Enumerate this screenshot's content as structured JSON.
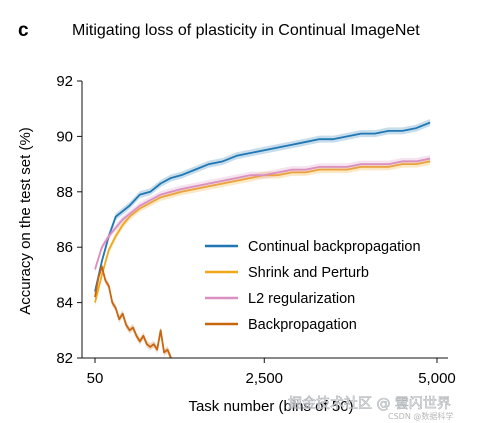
{
  "panel_letter": "c",
  "chart_data": {
    "type": "line",
    "title": "Mitigating loss of plasticity in Continual ImageNet",
    "xlabel": "Task number (bins of 50)",
    "ylabel": "Accuracy on the test set (%)",
    "xlim": [
      50,
      5000
    ],
    "ylim": [
      82,
      92
    ],
    "xticks": [
      50,
      2500,
      5000
    ],
    "xtick_labels": [
      "50",
      "2,500",
      "5,000"
    ],
    "yticks": [
      82,
      84,
      86,
      88,
      90,
      92
    ],
    "ytick_labels": [
      "82",
      "84",
      "86",
      "88",
      "90",
      "92"
    ],
    "grid": false,
    "legend_position": "lower-right",
    "series": [
      {
        "name": "Continual backpropagation",
        "color": "#1f77b4",
        "x": [
          50,
          150,
          250,
          350,
          450,
          550,
          700,
          850,
          1000,
          1150,
          1300,
          1500,
          1700,
          1900,
          2100,
          2300,
          2500,
          2700,
          2900,
          3100,
          3300,
          3500,
          3700,
          3900,
          4100,
          4300,
          4500,
          4700,
          4900
        ],
        "values": [
          84.4,
          85.5,
          86.4,
          87.1,
          87.3,
          87.5,
          87.9,
          88.0,
          88.3,
          88.5,
          88.6,
          88.8,
          89.0,
          89.1,
          89.3,
          89.4,
          89.5,
          89.6,
          89.7,
          89.8,
          89.9,
          89.9,
          90.0,
          90.1,
          90.1,
          90.2,
          90.2,
          90.3,
          90.5
        ]
      },
      {
        "name": "Shrink and Perturb",
        "color": "#f0a818",
        "x": [
          50,
          150,
          250,
          350,
          450,
          550,
          700,
          850,
          1000,
          1150,
          1300,
          1500,
          1700,
          1900,
          2100,
          2300,
          2500,
          2700,
          2900,
          3100,
          3300,
          3500,
          3700,
          3900,
          4100,
          4300,
          4500,
          4700,
          4900
        ],
        "values": [
          84.0,
          85.0,
          85.9,
          86.4,
          86.8,
          87.1,
          87.4,
          87.6,
          87.8,
          87.9,
          88.0,
          88.1,
          88.2,
          88.3,
          88.4,
          88.5,
          88.6,
          88.6,
          88.7,
          88.7,
          88.8,
          88.8,
          88.8,
          88.9,
          88.9,
          88.9,
          89.0,
          89.0,
          89.1
        ]
      },
      {
        "name": "L2 regularization",
        "color": "#d98fbf",
        "x": [
          50,
          150,
          250,
          350,
          450,
          550,
          700,
          850,
          1000,
          1150,
          1300,
          1500,
          1700,
          1900,
          2100,
          2300,
          2500,
          2700,
          2900,
          3100,
          3300,
          3500,
          3700,
          3900,
          4100,
          4300,
          4500,
          4700,
          4900
        ],
        "values": [
          85.2,
          86.0,
          86.4,
          86.7,
          87.0,
          87.2,
          87.5,
          87.7,
          87.9,
          88.0,
          88.1,
          88.2,
          88.3,
          88.4,
          88.5,
          88.6,
          88.6,
          88.7,
          88.8,
          88.8,
          88.9,
          88.9,
          88.9,
          89.0,
          89.0,
          89.0,
          89.1,
          89.1,
          89.2
        ]
      },
      {
        "name": "Backpropagation",
        "color": "#c8650f",
        "x": [
          50,
          100,
          150,
          200,
          250,
          300,
          350,
          400,
          450,
          500,
          550,
          600,
          650,
          700,
          750,
          800,
          850,
          900,
          950,
          1000,
          1050,
          1100,
          1150
        ],
        "values": [
          84.2,
          84.9,
          85.3,
          84.8,
          84.6,
          84.0,
          83.8,
          83.4,
          83.6,
          83.2,
          83.0,
          83.1,
          82.8,
          82.6,
          82.8,
          82.5,
          82.4,
          82.5,
          82.3,
          83.0,
          82.2,
          82.3,
          82.0
        ]
      }
    ]
  },
  "watermark": {
    "text": "掘金技术社区 @ 雲闪世界",
    "subtext": "CSDN @数据科学"
  }
}
